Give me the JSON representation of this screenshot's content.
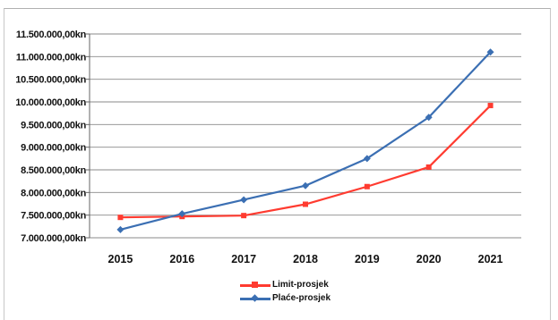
{
  "chart_data": {
    "type": "line",
    "categories": [
      "2015",
      "2016",
      "2017",
      "2018",
      "2019",
      "2020",
      "2021"
    ],
    "y_tick_labels": [
      "11.500.000,00kn",
      "11.000.000,00kn",
      "10.500.000,00kn",
      "10.000.000,00kn",
      "9.500.000,00kn",
      "9.000.000,00kn",
      "8.500.000,00kn",
      "8.000.000,00kn",
      "7.500.000,00kn",
      "7.000.000,00kn"
    ],
    "ylim": [
      7000000,
      11500000
    ],
    "grid": true,
    "legend_position": "bottom",
    "series": [
      {
        "name": "Limit-prosjek",
        "color": "#ff3b30",
        "marker": "square",
        "values": [
          7450000,
          7470000,
          7490000,
          7740000,
          8130000,
          8560000,
          9920000
        ]
      },
      {
        "name": "Plaće-prosjek",
        "color": "#3b6fb3",
        "marker": "diamond",
        "values": [
          7180000,
          7530000,
          7840000,
          8150000,
          8750000,
          9660000,
          11100000
        ]
      }
    ]
  }
}
